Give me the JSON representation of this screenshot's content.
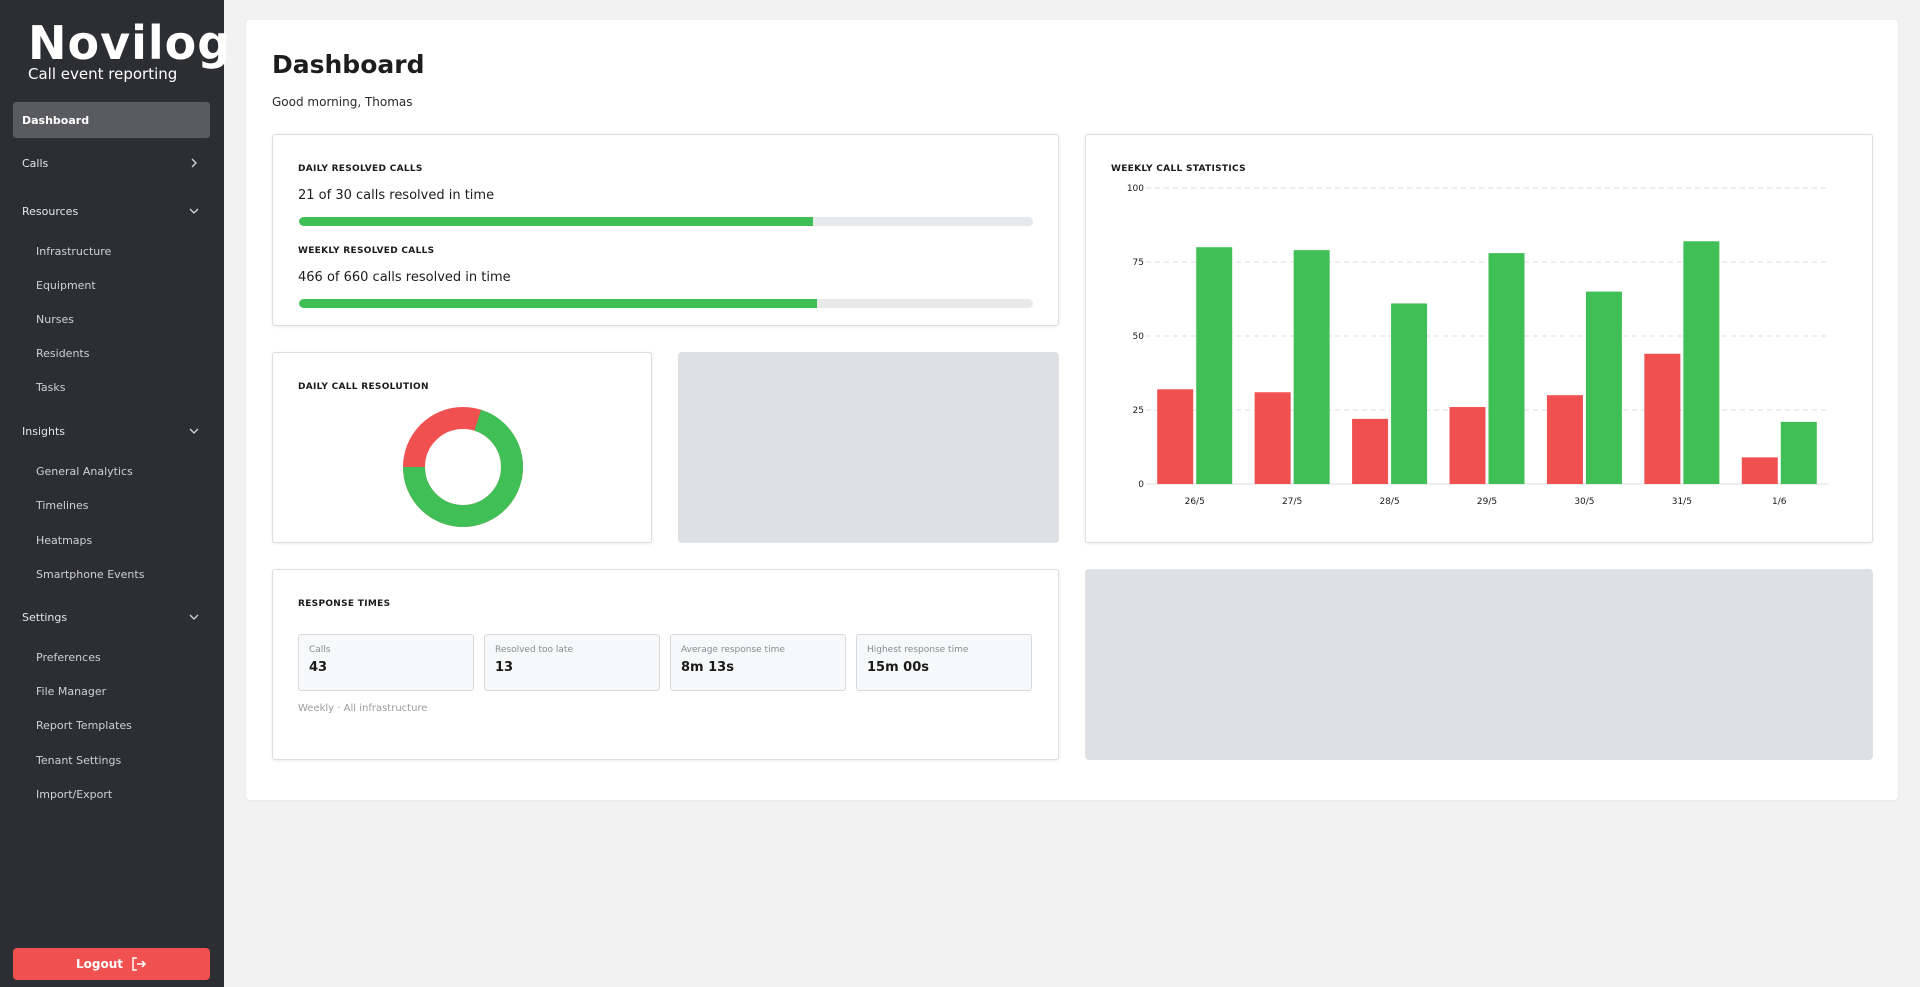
{
  "brand": {
    "name": "Novilog",
    "tagline": "Call event reporting"
  },
  "sidebar": {
    "active": "Dashboard",
    "calls": "Calls",
    "resources": {
      "label": "Resources",
      "items": [
        "Infrastructure",
        "Equipment",
        "Nurses",
        "Residents",
        "Tasks"
      ]
    },
    "insights": {
      "label": "Insights",
      "items": [
        "General Analytics",
        "Timelines",
        "Heatmaps",
        "Smartphone Events"
      ]
    },
    "settings": {
      "label": "Settings",
      "items": [
        "Preferences",
        "File Manager",
        "Report Templates",
        "Tenant Settings",
        "Import/Export"
      ]
    },
    "logout": "Logout"
  },
  "header": {
    "title": "Dashboard",
    "greeting": "Good morning, Thomas"
  },
  "resolved": {
    "daily_title": "DAILY RESOLVED CALLS",
    "daily_text": "21 of 30 calls resolved in time",
    "daily_fraction": 0.7,
    "weekly_title": "WEEKLY RESOLVED CALLS",
    "weekly_text": "466 of 660 calls resolved in time",
    "weekly_fraction": 0.706
  },
  "daily_resolution": {
    "title": "DAILY CALL RESOLUTION",
    "resolved_fraction": 0.7,
    "colors": {
      "resolved": "#3fbf55",
      "late": "#f05050"
    }
  },
  "response_times": {
    "title": "RESPONSE TIMES",
    "metrics": [
      {
        "label": "Calls",
        "value": "43"
      },
      {
        "label": "Resolved too late",
        "value": "13"
      },
      {
        "label": "Average response time",
        "value": "8m 13s"
      },
      {
        "label": "Highest response time",
        "value": "15m 00s"
      }
    ],
    "footnote": "Weekly · All infrastructure"
  },
  "chart_data": {
    "type": "bar",
    "title": "WEEKLY CALL STATISTICS",
    "categories": [
      "26/5",
      "27/5",
      "28/5",
      "29/5",
      "30/5",
      "31/5",
      "1/6"
    ],
    "series": [
      {
        "color": "#f05050",
        "values": [
          32,
          31,
          22,
          26,
          30,
          44,
          9
        ]
      },
      {
        "color": "#3fbf55",
        "values": [
          80,
          79,
          61,
          78,
          65,
          82,
          21
        ]
      }
    ],
    "ylim": [
      0,
      100
    ],
    "yticks": [
      "0",
      "25",
      "50",
      "75",
      "100"
    ],
    "grid": true
  }
}
